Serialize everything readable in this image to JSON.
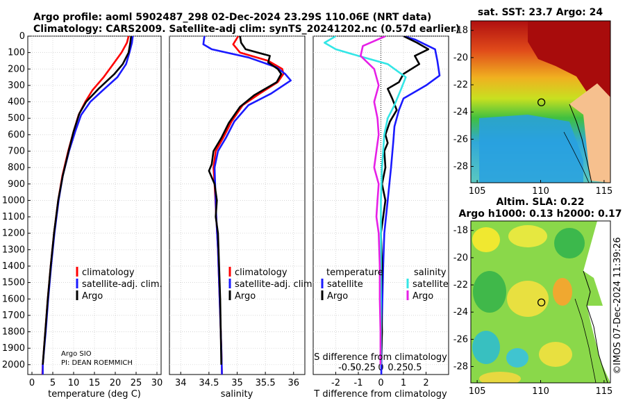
{
  "header": {
    "title_line1": "Argo profile: aoml 5902487_298 02-Dec-2024 23.29S 110.06E (NRT data)",
    "title_line2": "Climatology: CARS2009. Satellite-adj clim: synTS_20241202.nc (0.57d earlier)"
  },
  "notes": {
    "argo_center": "Argo SIO",
    "pi": "PI: DEAN ROEMMICH"
  },
  "watermark": "©IMOS 07-Dec-2024 11:39:26",
  "colors": {
    "climatology": "#ff0000",
    "satellite": "#1a1aff",
    "argo": "#000000",
    "sat_temp": "#33e6e6",
    "argo_sal": "#e620e6"
  },
  "chart_data": [
    {
      "type": "line",
      "id": "temperature",
      "xlabel": "temperature (deg C)",
      "xlim": [
        -1,
        31
      ],
      "xticks": [
        0,
        5,
        10,
        15,
        20,
        25,
        30
      ],
      "ylim": [
        0,
        2060
      ],
      "yticks": [
        0,
        100,
        200,
        300,
        400,
        500,
        600,
        700,
        800,
        900,
        1000,
        1100,
        1200,
        1300,
        1400,
        1500,
        1600,
        1700,
        1800,
        1900,
        2000
      ],
      "legend": [
        "climatology",
        "satellite-adj. clim.",
        "Argo"
      ],
      "series": [
        {
          "name": "climatology",
          "color": "#ff0000",
          "points": [
            [
              23.2,
              0
            ],
            [
              22.8,
              40
            ],
            [
              21.5,
              100
            ],
            [
              19.5,
              170
            ],
            [
              17.2,
              250
            ],
            [
              14.5,
              330
            ],
            [
              12.8,
              400
            ],
            [
              11.2,
              480
            ],
            [
              10.0,
              580
            ],
            [
              8.7,
              700
            ],
            [
              7.3,
              850
            ],
            [
              6.3,
              1000
            ],
            [
              5.3,
              1200
            ],
            [
              4.5,
              1400
            ],
            [
              3.8,
              1600
            ],
            [
              3.2,
              1800
            ],
            [
              2.6,
              2000
            ],
            [
              2.5,
              2060
            ]
          ]
        },
        {
          "name": "satellite-adj. clim.",
          "color": "#1a1aff",
          "points": [
            [
              24.2,
              0
            ],
            [
              24.0,
              40
            ],
            [
              23.4,
              100
            ],
            [
              22.6,
              170
            ],
            [
              20.5,
              250
            ],
            [
              17.0,
              330
            ],
            [
              14.0,
              400
            ],
            [
              11.8,
              480
            ],
            [
              10.4,
              580
            ],
            [
              8.9,
              700
            ],
            [
              7.4,
              850
            ],
            [
              6.4,
              1000
            ],
            [
              5.4,
              1200
            ],
            [
              4.6,
              1400
            ],
            [
              3.9,
              1600
            ],
            [
              3.3,
              1800
            ],
            [
              2.6,
              2000
            ],
            [
              2.6,
              2060
            ]
          ]
        },
        {
          "name": "Argo",
          "color": "#000000",
          "points": [
            [
              23.8,
              0
            ],
            [
              23.6,
              40
            ],
            [
              23.2,
              100
            ],
            [
              21.8,
              170
            ],
            [
              19.8,
              230
            ],
            [
              16.0,
              320
            ],
            [
              13.0,
              400
            ],
            [
              11.4,
              470
            ],
            [
              10.0,
              580
            ],
            [
              8.8,
              700
            ],
            [
              7.4,
              850
            ],
            [
              6.3,
              1000
            ],
            [
              5.3,
              1200
            ],
            [
              4.5,
              1400
            ],
            [
              3.8,
              1600
            ],
            [
              3.2,
              1800
            ],
            [
              2.6,
              2000
            ]
          ]
        }
      ]
    },
    {
      "type": "line",
      "id": "salinity",
      "xlabel": "salinity",
      "xlim": [
        33.8,
        36.2
      ],
      "xticks": [
        34,
        34.5,
        35,
        35.5,
        36
      ],
      "ylim": [
        0,
        2060
      ],
      "series": [
        {
          "name": "climatology",
          "color": "#ff0000",
          "points": [
            [
              35.02,
              0
            ],
            [
              34.93,
              50
            ],
            [
              35.05,
              100
            ],
            [
              35.55,
              150
            ],
            [
              35.8,
              200
            ],
            [
              35.82,
              230
            ],
            [
              35.72,
              280
            ],
            [
              35.4,
              350
            ],
            [
              35.1,
              420
            ],
            [
              34.9,
              520
            ],
            [
              34.75,
              620
            ],
            [
              34.62,
              700
            ],
            [
              34.58,
              800
            ],
            [
              34.6,
              900
            ],
            [
              34.63,
              1100
            ],
            [
              34.66,
              1300
            ],
            [
              34.68,
              1500
            ],
            [
              34.7,
              1700
            ],
            [
              34.72,
              1900
            ],
            [
              34.73,
              2060
            ]
          ]
        },
        {
          "name": "satellite-adj. clim.",
          "color": "#1a1aff",
          "points": [
            [
              34.42,
              0
            ],
            [
              34.4,
              50
            ],
            [
              34.55,
              80
            ],
            [
              35.2,
              130
            ],
            [
              35.7,
              190
            ],
            [
              35.85,
              230
            ],
            [
              35.95,
              270
            ],
            [
              35.6,
              350
            ],
            [
              35.2,
              420
            ],
            [
              34.95,
              520
            ],
            [
              34.8,
              620
            ],
            [
              34.66,
              700
            ],
            [
              34.6,
              800
            ],
            [
              34.61,
              900
            ],
            [
              34.63,
              1100
            ],
            [
              34.66,
              1300
            ],
            [
              34.68,
              1500
            ],
            [
              34.7,
              1700
            ],
            [
              34.72,
              1900
            ],
            [
              34.73,
              2060
            ]
          ]
        },
        {
          "name": "Argo",
          "color": "#000000",
          "points": [
            [
              35.05,
              0
            ],
            [
              35.07,
              40
            ],
            [
              35.15,
              80
            ],
            [
              35.58,
              120
            ],
            [
              35.55,
              160
            ],
            [
              35.72,
              200
            ],
            [
              35.78,
              230
            ],
            [
              35.7,
              280
            ],
            [
              35.3,
              360
            ],
            [
              35.05,
              430
            ],
            [
              34.85,
              530
            ],
            [
              34.72,
              620
            ],
            [
              34.58,
              700
            ],
            [
              34.55,
              780
            ],
            [
              34.5,
              820
            ],
            [
              34.6,
              900
            ],
            [
              34.64,
              1000
            ],
            [
              34.62,
              1100
            ],
            [
              34.66,
              1200
            ],
            [
              34.67,
              1300
            ],
            [
              34.68,
              1400
            ],
            [
              34.7,
              1600
            ],
            [
              34.71,
              1800
            ],
            [
              34.72,
              2000
            ]
          ]
        }
      ]
    },
    {
      "type": "line",
      "id": "difference",
      "xlabel": "T difference from climatology",
      "xlabel_top": "S difference from climatology",
      "xlim": [
        -3,
        3
      ],
      "xticks": [
        -2,
        -1,
        0,
        1,
        2
      ],
      "sticks": [
        [
          -1.5,
          "-0.5"
        ],
        [
          -0.75,
          "-0.25"
        ],
        [
          0,
          "0"
        ],
        [
          0.75,
          "0.25"
        ],
        [
          1.5,
          "0.5"
        ]
      ],
      "ylim": [
        0,
        2060
      ],
      "legend_groups": [
        {
          "heading": "temperature",
          "items": [
            "satellite",
            "Argo"
          ]
        },
        {
          "heading": "salinity",
          "items": [
            "satellite",
            "Argo"
          ]
        }
      ],
      "series": [
        {
          "name": "temperature satellite",
          "color": "#1a1aff",
          "points": [
            [
              1.0,
              0
            ],
            [
              1.5,
              20
            ],
            [
              2.4,
              80
            ],
            [
              2.5,
              150
            ],
            [
              2.6,
              240
            ],
            [
              2.0,
              300
            ],
            [
              1.0,
              380
            ],
            [
              0.8,
              450
            ],
            [
              0.6,
              550
            ],
            [
              0.55,
              640
            ],
            [
              0.45,
              800
            ],
            [
              0.3,
              1000
            ],
            [
              0.15,
              1200
            ],
            [
              0.1,
              1400
            ],
            [
              0.05,
              1700
            ],
            [
              0.02,
              2000
            ],
            [
              0.02,
              2060
            ]
          ]
        },
        {
          "name": "temperature Argo",
          "color": "#000000",
          "points": [
            [
              1.0,
              0
            ],
            [
              1.6,
              40
            ],
            [
              2.1,
              80
            ],
            [
              1.5,
              120
            ],
            [
              1.7,
              170
            ],
            [
              1.0,
              230
            ],
            [
              0.8,
              280
            ],
            [
              0.3,
              320
            ],
            [
              0.5,
              380
            ],
            [
              0.7,
              450
            ],
            [
              0.4,
              520
            ],
            [
              0.2,
              600
            ],
            [
              0.3,
              650
            ],
            [
              0.15,
              700
            ],
            [
              0.2,
              800
            ],
            [
              0.05,
              900
            ],
            [
              0.2,
              1000
            ],
            [
              0.1,
              1100
            ],
            [
              0.0,
              1200
            ],
            [
              0.05,
              1400
            ],
            [
              0.0,
              1600
            ],
            [
              0.05,
              1800
            ],
            [
              0.0,
              2000
            ]
          ]
        },
        {
          "name": "salinity satellite",
          "color": "#33e6e6",
          "points": [
            [
              -2.0,
              0
            ],
            [
              -2.5,
              40
            ],
            [
              -2.0,
              80
            ],
            [
              -1.0,
              120
            ],
            [
              0.3,
              170
            ],
            [
              1.1,
              250
            ],
            [
              0.9,
              320
            ],
            [
              0.6,
              420
            ],
            [
              0.3,
              500
            ],
            [
              0.15,
              600
            ],
            [
              0.05,
              800
            ],
            [
              0.0,
              1000
            ],
            [
              0.0,
              1500
            ],
            [
              0.0,
              2000
            ]
          ]
        },
        {
          "name": "salinity Argo",
          "color": "#e620e6",
          "points": [
            [
              0.2,
              0
            ],
            [
              -0.8,
              60
            ],
            [
              -0.9,
              120
            ],
            [
              -0.3,
              200
            ],
            [
              -0.1,
              300
            ],
            [
              -0.3,
              400
            ],
            [
              -0.15,
              500
            ],
            [
              -0.1,
              600
            ],
            [
              -0.2,
              700
            ],
            [
              -0.3,
              800
            ],
            [
              -0.1,
              900
            ],
            [
              -0.15,
              1000
            ],
            [
              -0.2,
              1100
            ],
            [
              -0.1,
              1200
            ],
            [
              -0.05,
              1400
            ],
            [
              -0.05,
              1600
            ],
            [
              -0.02,
              1800
            ],
            [
              -0.02,
              2000
            ]
          ]
        }
      ]
    },
    {
      "type": "heatmap",
      "id": "sst_map",
      "title": "sat. SST: 23.7 Argo: 24",
      "xlim": [
        104.5,
        115.5
      ],
      "ylim": [
        -29.2,
        -17.3
      ],
      "xticks": [
        105,
        110,
        115
      ],
      "yticks": [
        -18,
        -20,
        -22,
        -24,
        -26,
        -28
      ],
      "argo_position": [
        110.06,
        -23.29
      ]
    },
    {
      "type": "heatmap",
      "id": "sla_map",
      "title": "Altim. SLA: 0.22",
      "subtitle": "Argo h1000: 0.13 h2000: 0.17",
      "xlim": [
        104.5,
        115.5
      ],
      "ylim": [
        -29.2,
        -17.3
      ],
      "xticks": [
        105,
        110,
        115
      ],
      "yticks": [
        -18,
        -20,
        -22,
        -24,
        -26,
        -28
      ],
      "argo_position": [
        110.06,
        -23.29
      ]
    }
  ]
}
